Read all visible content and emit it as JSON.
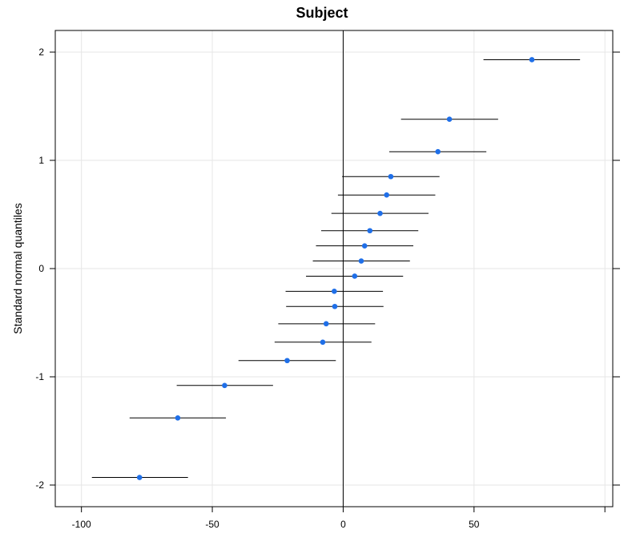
{
  "chart_data": {
    "type": "scatter",
    "title": "Subject",
    "xlabel": "",
    "ylabel": "Standard normal quantiles",
    "xlim": [
      -110,
      103
    ],
    "ylim": [
      -2.2,
      2.2
    ],
    "x_ticks": [
      -100,
      -50,
      0,
      50
    ],
    "y_ticks": [
      2,
      1,
      0,
      -1,
      -2
    ],
    "x_tick_labels": [
      "-100",
      "-50",
      "0",
      "50"
    ],
    "y_tick_labels": [
      "2",
      "1",
      "0",
      "-1",
      "-2"
    ],
    "grid": true,
    "reference_line_x": 0,
    "point_color": "#1f6fe8",
    "points": [
      {
        "y": -1.93,
        "est": -77.8,
        "lo": -96.0,
        "hi": -59.3
      },
      {
        "y": -1.38,
        "est": -63.2,
        "lo": -81.6,
        "hi": -44.8
      },
      {
        "y": -1.08,
        "est": -45.3,
        "lo": -63.6,
        "hi": -26.8
      },
      {
        "y": -0.85,
        "est": -21.4,
        "lo": -40.0,
        "hi": -2.8
      },
      {
        "y": -0.68,
        "est": -7.8,
        "lo": -26.2,
        "hi": 10.8
      },
      {
        "y": -0.51,
        "est": -6.5,
        "lo": -24.8,
        "hi": 12.2
      },
      {
        "y": -0.35,
        "est": -3.2,
        "lo": -21.8,
        "hi": 15.4
      },
      {
        "y": -0.21,
        "est": -3.4,
        "lo": -22.0,
        "hi": 15.2
      },
      {
        "y": -0.07,
        "est": 4.4,
        "lo": -14.2,
        "hi": 22.9
      },
      {
        "y": 0.07,
        "est": 6.9,
        "lo": -11.6,
        "hi": 25.5
      },
      {
        "y": 0.21,
        "est": 8.2,
        "lo": -10.4,
        "hi": 26.8
      },
      {
        "y": 0.35,
        "est": 10.2,
        "lo": -8.4,
        "hi": 28.7
      },
      {
        "y": 0.51,
        "est": 14.1,
        "lo": -4.5,
        "hi": 32.6
      },
      {
        "y": 0.68,
        "est": 16.6,
        "lo": -2.0,
        "hi": 35.2
      },
      {
        "y": 0.85,
        "est": 18.2,
        "lo": -0.4,
        "hi": 36.8
      },
      {
        "y": 1.08,
        "est": 36.2,
        "lo": 17.6,
        "hi": 54.7
      },
      {
        "y": 1.38,
        "est": 40.6,
        "lo": 22.1,
        "hi": 59.2
      },
      {
        "y": 1.93,
        "est": 72.1,
        "lo": 53.6,
        "hi": 90.5
      }
    ]
  }
}
